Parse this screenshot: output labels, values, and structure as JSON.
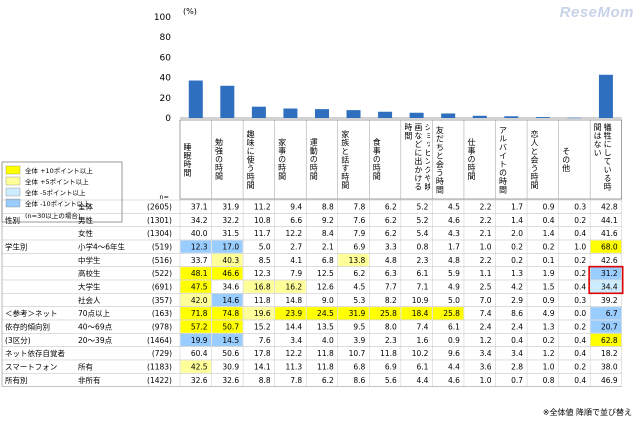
{
  "watermark": "ReseMom",
  "footnote": "※全体値 降順で並び替え",
  "chart_data": {
    "type": "bar",
    "unit": "(%)",
    "ylim": [
      0,
      100
    ],
    "yticks": [
      0,
      20,
      40,
      60,
      80,
      100
    ],
    "n_label": "n=",
    "bar_color": "#2e6fbf",
    "categories": [
      "睡眠時間",
      "勉強の時間",
      "趣味に使う時間",
      "家事の時間",
      "運動の時間",
      "家族と話す時間",
      "食事の時間",
      "ショッピングや映画などに出かける時間",
      "友だちと会う時間",
      "仕事の時間",
      "アルバイトの時間",
      "恋人と会う時間",
      "その他",
      "犠牲にしている時間はない"
    ],
    "values": [
      37.1,
      31.9,
      11.2,
      9.4,
      8.8,
      7.8,
      6.2,
      5.2,
      4.5,
      2.2,
      1.7,
      0.9,
      0.3,
      42.8
    ],
    "legend": {
      "items": [
        {
          "label": "全体 +10ポイント以上",
          "color": "#ffff00"
        },
        {
          "label": "全体 +5ポイント以上",
          "color": "#ffff99"
        },
        {
          "label": "全体 -5ポイント以上",
          "color": "#ccecff"
        },
        {
          "label": "全体 -10ポイント以上",
          "color": "#99ccff"
        }
      ],
      "note": "(n=30以上の場合)"
    },
    "highlight_cells": [
      {
        "row": "高校生",
        "column": "犠牲にしている時間はない",
        "value": "31.2"
      },
      {
        "row": "大学生",
        "column": "犠牲にしている時間はない",
        "value": "34.4"
      }
    ],
    "table": [
      {
        "group": "",
        "label": "全体",
        "n": "(2605)",
        "values": [
          "37.1",
          "31.9",
          "11.2",
          "9.4",
          "8.8",
          "7.8",
          "6.2",
          "5.2",
          "4.5",
          "2.2",
          "1.7",
          "0.9",
          "0.3",
          "42.8"
        ],
        "colors": [
          "",
          "",
          "",
          "",
          "",
          "",
          "",
          "",
          "",
          "",
          "",
          "",
          "",
          ""
        ]
      },
      {
        "group": "性別",
        "label": "男性",
        "n": "(1301)",
        "values": [
          "34.2",
          "32.2",
          "10.8",
          "6.6",
          "9.2",
          "7.6",
          "6.2",
          "5.2",
          "4.6",
          "2.2",
          "1.4",
          "0.4",
          "0.2",
          "44.1"
        ],
        "colors": [
          "",
          "",
          "",
          "",
          "",
          "",
          "",
          "",
          "",
          "",
          "",
          "",
          "",
          ""
        ]
      },
      {
        "group": "",
        "label": "女性",
        "n": "(1304)",
        "values": [
          "40.0",
          "31.5",
          "11.7",
          "12.2",
          "8.4",
          "7.9",
          "6.2",
          "5.4",
          "4.3",
          "2.1",
          "2.0",
          "1.4",
          "0.4",
          "41.6"
        ],
        "colors": [
          "",
          "",
          "",
          "",
          "",
          "",
          "",
          "",
          "",
          "",
          "",
          "",
          "",
          ""
        ]
      },
      {
        "group": "学生別",
        "label": "小学4～6年生",
        "n": "(519)",
        "values": [
          "12.3",
          "17.0",
          "5.0",
          "2.7",
          "2.1",
          "6.9",
          "3.3",
          "0.8",
          "1.7",
          "1.0",
          "0.2",
          "0.2",
          "1.0",
          "68.0"
        ],
        "colors": [
          "B",
          "B",
          "",
          "",
          "",
          "",
          "",
          "",
          "",
          "",
          "",
          "",
          "",
          "Y"
        ]
      },
      {
        "group": "",
        "label": "中学生",
        "n": "(516)",
        "values": [
          "33.7",
          "40.3",
          "8.5",
          "4.1",
          "6.8",
          "13.8",
          "4.8",
          "2.3",
          "4.8",
          "2.2",
          "0.2",
          "0.1",
          "0.2",
          "42.6"
        ],
        "colors": [
          "",
          "LY",
          "",
          "",
          "",
          "LY",
          "",
          "",
          "",
          "",
          "",
          "",
          "",
          ""
        ]
      },
      {
        "group": "",
        "label": "高校生",
        "n": "(522)",
        "values": [
          "48.1",
          "46.6",
          "12.3",
          "7.9",
          "12.5",
          "6.2",
          "6.3",
          "6.1",
          "5.9",
          "1.1",
          "1.3",
          "1.9",
          "0.2",
          "31.2"
        ],
        "colors": [
          "Y",
          "Y",
          "",
          "",
          "",
          "",
          "",
          "",
          "",
          "",
          "",
          "",
          "",
          "B"
        ]
      },
      {
        "group": "",
        "label": "大学生",
        "n": "(691)",
        "values": [
          "47.5",
          "34.6",
          "16.8",
          "16.2",
          "12.6",
          "4.5",
          "7.7",
          "7.1",
          "4.9",
          "2.5",
          "4.2",
          "1.5",
          "0.4",
          "34.4"
        ],
        "colors": [
          "Y",
          "",
          "LY",
          "LY",
          "",
          "",
          "",
          "",
          "",
          "",
          "",
          "",
          "",
          "LB"
        ]
      },
      {
        "group": "",
        "label": "社会人",
        "n": "(357)",
        "values": [
          "42.0",
          "14.6",
          "11.8",
          "14.8",
          "9.0",
          "5.3",
          "8.2",
          "10.9",
          "5.0",
          "7.0",
          "2.9",
          "0.9",
          "0.3",
          "39.2"
        ],
        "colors": [
          "LY",
          "B",
          "",
          "",
          "",
          "",
          "",
          "",
          "",
          "",
          "",
          "",
          "",
          ""
        ]
      },
      {
        "group": "＜参考＞ネット",
        "label": "70点以上",
        "n": "(163)",
        "values": [
          "71.8",
          "74.8",
          "19.6",
          "23.9",
          "24.5",
          "31.9",
          "25.8",
          "18.4",
          "25.8",
          "7.4",
          "8.6",
          "4.9",
          "0.0",
          "6.7"
        ],
        "colors": [
          "Y",
          "Y",
          "LY",
          "Y",
          "Y",
          "Y",
          "Y",
          "Y",
          "Y",
          "",
          "",
          "",
          "",
          "B"
        ]
      },
      {
        "group": "依存的傾向別",
        "label": "40～69点",
        "n": "(978)",
        "values": [
          "57.2",
          "50.7",
          "15.2",
          "14.4",
          "13.5",
          "9.5",
          "8.0",
          "7.4",
          "6.1",
          "2.4",
          "2.4",
          "1.3",
          "0.2",
          "20.7"
        ],
        "colors": [
          "Y",
          "Y",
          "",
          "",
          "",
          "",
          "",
          "",
          "",
          "",
          "",
          "",
          "",
          "B"
        ]
      },
      {
        "group": "(3区分)",
        "label": "20～39点",
        "n": "(1464)",
        "values": [
          "19.9",
          "14.5",
          "7.6",
          "3.4",
          "4.0",
          "3.9",
          "2.3",
          "1.6",
          "0.9",
          "1.2",
          "0.4",
          "0.2",
          "0.4",
          "62.8"
        ],
        "colors": [
          "B",
          "B",
          "",
          "",
          "",
          "",
          "",
          "",
          "",
          "",
          "",
          "",
          "",
          "Y"
        ]
      },
      {
        "group": "ネット依存自覚者",
        "label": "",
        "n": "(729)",
        "values": [
          "60.4",
          "50.6",
          "17.8",
          "12.2",
          "11.8",
          "10.7",
          "11.8",
          "10.2",
          "9.6",
          "3.4",
          "3.4",
          "1.2",
          "0.4",
          "18.2"
        ],
        "colors": [
          "",
          "",
          "",
          "",
          "",
          "",
          "",
          "",
          "",
          "",
          "",
          "",
          "",
          ""
        ]
      },
      {
        "group": "スマートフォン",
        "label": "所有",
        "n": "(1183)",
        "values": [
          "42.5",
          "30.9",
          "14.1",
          "11.3",
          "11.8",
          "6.8",
          "6.9",
          "6.1",
          "4.4",
          "3.6",
          "2.8",
          "1.0",
          "0.2",
          "38.0"
        ],
        "colors": [
          "LY",
          "",
          "",
          "",
          "",
          "",
          "",
          "",
          "",
          "",
          "",
          "",
          "",
          ""
        ]
      },
      {
        "group": "所有別",
        "label": "非所有",
        "n": "(1422)",
        "values": [
          "32.6",
          "32.6",
          "8.8",
          "7.8",
          "6.2",
          "8.6",
          "5.6",
          "4.4",
          "4.6",
          "1.0",
          "0.7",
          "0.8",
          "0.4",
          "46.9"
        ],
        "colors": [
          "",
          "",
          "",
          "",
          "",
          "",
          "",
          "",
          "",
          "",
          "",
          "",
          "",
          ""
        ]
      }
    ]
  }
}
